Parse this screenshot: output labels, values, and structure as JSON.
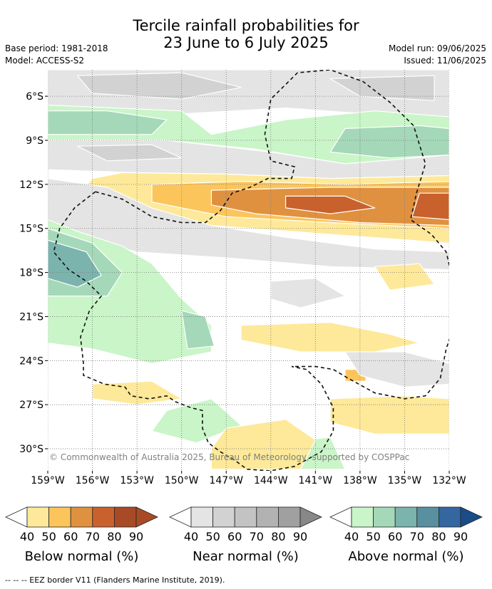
{
  "header": {
    "title_line1": "Tercile rainfall probabilities for",
    "title_line2": "23 June to 6 July 2025",
    "base_period": "Base period: 1981-2018",
    "model": "Model: ACCESS-S2",
    "model_run": "Model run: 09/06/2025",
    "issued": "Issued: 11/06/2025"
  },
  "chart_data": {
    "type": "heatmap",
    "title": "Tercile rainfall probabilities for 23 June to 6 July 2025",
    "x_ticks": [
      "159°W",
      "156°W",
      "153°W",
      "150°W",
      "147°W",
      "144°W",
      "141°W",
      "138°W",
      "135°W",
      "132°W"
    ],
    "x_values": [
      -159,
      -156,
      -153,
      -150,
      -147,
      -144,
      -141,
      -138,
      -135,
      -132
    ],
    "y_ticks": [
      "6°S",
      "9°S",
      "12°S",
      "15°S",
      "18°S",
      "21°S",
      "24°S",
      "27°S",
      "30°S"
    ],
    "y_values": [
      -6,
      -9,
      -12,
      -15,
      -18,
      -21,
      -24,
      -27,
      -30
    ],
    "xlim": [
      -159,
      -132
    ],
    "ylim": [
      -31.5,
      -4.2
    ],
    "grid": true,
    "copyright": "© Commonwealth of Australia 2025, Bureau of Meteorology, supported by COSPPac",
    "regions": [
      {
        "category": "near",
        "level": 40,
        "pts": [
          [
            -159,
            -4.2
          ],
          [
            -132,
            -4.2
          ],
          [
            -132,
            -7.6
          ],
          [
            -143,
            -6.8
          ],
          [
            -150,
            -7.2
          ],
          [
            -159,
            -6.6
          ]
        ]
      },
      {
        "category": "near",
        "level": 50,
        "pts": [
          [
            -157,
            -4.6
          ],
          [
            -150,
            -4.4
          ],
          [
            -146,
            -5.4
          ],
          [
            -150,
            -6.2
          ],
          [
            -156,
            -5.8
          ]
        ]
      },
      {
        "category": "near",
        "level": 50,
        "pts": [
          [
            -140,
            -4.8
          ],
          [
            -133,
            -4.6
          ],
          [
            -133,
            -6.3
          ],
          [
            -138,
            -6.0
          ]
        ]
      },
      {
        "category": "above",
        "level": 40,
        "pts": [
          [
            -159,
            -6.6
          ],
          [
            -150,
            -7.0
          ],
          [
            -148,
            -8.6
          ],
          [
            -143,
            -7.6
          ],
          [
            -137,
            -7.0
          ],
          [
            -132,
            -7.4
          ],
          [
            -132,
            -10.0
          ],
          [
            -139,
            -10.6
          ],
          [
            -145,
            -9.6
          ],
          [
            -151,
            -9.0
          ],
          [
            -159,
            -9.0
          ]
        ]
      },
      {
        "category": "above",
        "level": 50,
        "pts": [
          [
            -159,
            -7.0
          ],
          [
            -155,
            -7.0
          ],
          [
            -151,
            -7.6
          ],
          [
            -152,
            -8.6
          ],
          [
            -159,
            -8.6
          ]
        ]
      },
      {
        "category": "above",
        "level": 50,
        "pts": [
          [
            -139,
            -8.2
          ],
          [
            -134,
            -8.0
          ],
          [
            -132,
            -8.2
          ],
          [
            -132,
            -10.0
          ],
          [
            -136,
            -10.2
          ],
          [
            -140,
            -9.8
          ]
        ]
      },
      {
        "category": "near",
        "level": 40,
        "pts": [
          [
            -159,
            -9.0
          ],
          [
            -151,
            -9.0
          ],
          [
            -144,
            -9.8
          ],
          [
            -139,
            -10.6
          ],
          [
            -132,
            -10.0
          ],
          [
            -132,
            -11.4
          ],
          [
            -140,
            -11.6
          ],
          [
            -147,
            -11.3
          ],
          [
            -153,
            -11.2
          ],
          [
            -159,
            -11.0
          ]
        ]
      },
      {
        "category": "near",
        "level": 50,
        "pts": [
          [
            -157,
            -9.4
          ],
          [
            -152,
            -9.3
          ],
          [
            -150,
            -10.2
          ],
          [
            -155,
            -10.4
          ]
        ]
      },
      {
        "category": "below",
        "level": 40,
        "pts": [
          [
            -154,
            -11.2
          ],
          [
            -147,
            -11.3
          ],
          [
            -140,
            -11.6
          ],
          [
            -132,
            -11.4
          ],
          [
            -132,
            -16.0
          ],
          [
            -140,
            -15.4
          ],
          [
            -148,
            -14.8
          ],
          [
            -154,
            -13.8
          ],
          [
            -157,
            -12.8
          ],
          [
            -156,
            -11.6
          ]
        ]
      },
      {
        "category": "below",
        "level": 50,
        "pts": [
          [
            -152,
            -12.0
          ],
          [
            -146,
            -11.8
          ],
          [
            -139,
            -12.0
          ],
          [
            -132,
            -11.8
          ],
          [
            -132,
            -15.0
          ],
          [
            -140,
            -14.6
          ],
          [
            -147,
            -14.2
          ],
          [
            -152,
            -13.2
          ]
        ]
      },
      {
        "category": "below",
        "level": 60,
        "pts": [
          [
            -148,
            -12.4
          ],
          [
            -140,
            -12.2
          ],
          [
            -132,
            -12.2
          ],
          [
            -132,
            -14.8
          ],
          [
            -138,
            -14.6
          ],
          [
            -145,
            -14.0
          ],
          [
            -148,
            -13.4
          ]
        ]
      },
      {
        "category": "below",
        "level": 70,
        "pts": [
          [
            -143,
            -12.8
          ],
          [
            -139,
            -12.8
          ],
          [
            -137,
            -13.6
          ],
          [
            -140,
            -14.0
          ],
          [
            -143,
            -13.6
          ]
        ]
      },
      {
        "category": "below",
        "level": 70,
        "pts": [
          [
            -134,
            -12.6
          ],
          [
            -132,
            -12.6
          ],
          [
            -132,
            -14.4
          ],
          [
            -134.5,
            -14.2
          ]
        ]
      },
      {
        "category": "near",
        "level": 40,
        "pts": [
          [
            -159,
            -11.6
          ],
          [
            -155,
            -12.2
          ],
          [
            -152,
            -13.6
          ],
          [
            -148,
            -14.8
          ],
          [
            -143,
            -15.6
          ],
          [
            -137,
            -16.4
          ],
          [
            -132,
            -16.6
          ],
          [
            -132,
            -17.8
          ],
          [
            -140,
            -17.6
          ],
          [
            -147,
            -17.0
          ],
          [
            -153,
            -16.6
          ],
          [
            -157,
            -15.6
          ],
          [
            -159,
            -14.6
          ]
        ]
      },
      {
        "category": "above",
        "level": 40,
        "pts": [
          [
            -159,
            -14.4
          ],
          [
            -157,
            -15.2
          ],
          [
            -154,
            -16.2
          ],
          [
            -152,
            -17.4
          ],
          [
            -150,
            -19.8
          ],
          [
            -148,
            -21.6
          ],
          [
            -148,
            -23.4
          ],
          [
            -152,
            -24.2
          ],
          [
            -156,
            -23.2
          ],
          [
            -159,
            -22.8
          ]
        ]
      },
      {
        "category": "above",
        "level": 50,
        "pts": [
          [
            -159,
            -15.0
          ],
          [
            -156,
            -16.0
          ],
          [
            -154,
            -18.0
          ],
          [
            -155,
            -19.6
          ],
          [
            -159,
            -19.6
          ]
        ]
      },
      {
        "category": "above",
        "level": 60,
        "pts": [
          [
            -159,
            -15.8
          ],
          [
            -156.4,
            -16.6
          ],
          [
            -155.4,
            -18.2
          ],
          [
            -157,
            -19.0
          ],
          [
            -159,
            -18.4
          ]
        ]
      },
      {
        "category": "above",
        "level": 50,
        "pts": [
          [
            -150,
            -20.6
          ],
          [
            -148.4,
            -21.0
          ],
          [
            -147.8,
            -23.0
          ],
          [
            -149.6,
            -23.2
          ]
        ]
      },
      {
        "category": "above",
        "level": 40,
        "pts": [
          [
            -151,
            -27.4
          ],
          [
            -148,
            -26.6
          ],
          [
            -146,
            -28.4
          ],
          [
            -149,
            -29.6
          ],
          [
            -152,
            -28.8
          ]
        ]
      },
      {
        "category": "above",
        "level": 40,
        "pts": [
          [
            -143,
            -29.6
          ],
          [
            -140,
            -29.2
          ],
          [
            -139,
            -31.4
          ],
          [
            -143,
            -31.4
          ]
        ]
      },
      {
        "category": "below",
        "level": 40,
        "pts": [
          [
            -146,
            -21.6
          ],
          [
            -140,
            -21.4
          ],
          [
            -136,
            -22.2
          ],
          [
            -134,
            -22.8
          ],
          [
            -137,
            -23.4
          ],
          [
            -142,
            -23.4
          ],
          [
            -146,
            -22.6
          ]
        ]
      },
      {
        "category": "below",
        "level": 40,
        "pts": [
          [
            -140,
            -26.6
          ],
          [
            -135,
            -26.4
          ],
          [
            -132,
            -26.6
          ],
          [
            -132,
            -29.0
          ],
          [
            -137,
            -29.0
          ],
          [
            -140,
            -28.2
          ]
        ]
      },
      {
        "category": "below",
        "level": 40,
        "pts": [
          [
            -147,
            -28.6
          ],
          [
            -143,
            -28.0
          ],
          [
            -141,
            -29.4
          ],
          [
            -142,
            -31.4
          ],
          [
            -148,
            -31.4
          ],
          [
            -148,
            -30.0
          ]
        ]
      },
      {
        "category": "below",
        "level": 40,
        "pts": [
          [
            -156,
            -25.6
          ],
          [
            -152,
            -25.4
          ],
          [
            -150,
            -26.6
          ],
          [
            -153,
            -27.0
          ],
          [
            -156,
            -26.6
          ]
        ]
      },
      {
        "category": "below",
        "level": 40,
        "pts": [
          [
            -137,
            -17.6
          ],
          [
            -134,
            -17.4
          ],
          [
            -133,
            -18.8
          ],
          [
            -136,
            -19.2
          ]
        ]
      },
      {
        "category": "below",
        "level": 50,
        "pts": [
          [
            -139,
            -24.6
          ],
          [
            -137.6,
            -24.6
          ],
          [
            -137.6,
            -25.4
          ],
          [
            -139,
            -25.4
          ]
        ]
      },
      {
        "category": "near",
        "level": 40,
        "pts": [
          [
            -139,
            -23.4
          ],
          [
            -135,
            -23.4
          ],
          [
            -132,
            -24.2
          ],
          [
            -132,
            -25.6
          ],
          [
            -135,
            -25.8
          ],
          [
            -138,
            -25.0
          ]
        ]
      },
      {
        "category": "near",
        "level": 40,
        "pts": [
          [
            -144,
            -18.6
          ],
          [
            -141,
            -18.4
          ],
          [
            -139,
            -19.6
          ],
          [
            -142,
            -20.4
          ],
          [
            -144,
            -19.8
          ]
        ]
      }
    ],
    "eez_paths": [
      [
        [
          -155.8,
          -12.5
        ],
        [
          -154,
          -13.0
        ],
        [
          -152,
          -14.2
        ],
        [
          -150,
          -14.6
        ],
        [
          -148.4,
          -14.6
        ],
        [
          -147.4,
          -13.8
        ],
        [
          -146.6,
          -12.6
        ],
        [
          -145.4,
          -12.2
        ],
        [
          -144.2,
          -11.6
        ],
        [
          -142.6,
          -11.6
        ],
        [
          -142.4,
          -10.8
        ],
        [
          -144,
          -10.4
        ],
        [
          -144.4,
          -8.6
        ],
        [
          -144,
          -6.2
        ],
        [
          -142.2,
          -4.4
        ],
        [
          -140,
          -4.2
        ],
        [
          -137.8,
          -5.0
        ],
        [
          -136,
          -6.4
        ],
        [
          -134.4,
          -8.0
        ],
        [
          -133.6,
          -10.6
        ],
        [
          -134.2,
          -12.6
        ],
        [
          -134.6,
          -14.4
        ],
        [
          -133.2,
          -15.4
        ],
        [
          -132.2,
          -16.6
        ],
        [
          -131.6,
          -19.2
        ],
        [
          -131.6,
          -21.4
        ],
        [
          -132.2,
          -23.2
        ],
        [
          -132.6,
          -25.2
        ],
        [
          -133.6,
          -26.4
        ],
        [
          -135,
          -26.6
        ],
        [
          -137,
          -26.2
        ],
        [
          -138.8,
          -25.2
        ],
        [
          -139.8,
          -24.6
        ],
        [
          -141,
          -24.4
        ],
        [
          -142.6,
          -24.4
        ]
      ],
      [
        [
          -155.8,
          -12.5
        ],
        [
          -157.2,
          -13.6
        ],
        [
          -158.2,
          -15.0
        ],
        [
          -158.6,
          -16.6
        ],
        [
          -157.6,
          -17.8
        ],
        [
          -156.4,
          -18.6
        ],
        [
          -155.4,
          -19.6
        ],
        [
          -156.2,
          -20.6
        ],
        [
          -156.8,
          -22.4
        ],
        [
          -156.6,
          -24.2
        ],
        [
          -156.6,
          -25.0
        ],
        [
          -155.2,
          -25.6
        ],
        [
          -153.8,
          -25.8
        ],
        [
          -153.4,
          -26.4
        ],
        [
          -152.2,
          -26.6
        ],
        [
          -151,
          -26.4
        ],
        [
          -150.4,
          -26.8
        ],
        [
          -149.4,
          -27.2
        ],
        [
          -148.6,
          -27.4
        ],
        [
          -148.6,
          -28.6
        ],
        [
          -148.2,
          -29.6
        ],
        [
          -147.4,
          -30.2
        ],
        [
          -146.4,
          -30.8
        ],
        [
          -145.6,
          -31.4
        ],
        [
          -144,
          -31.5
        ],
        [
          -142.4,
          -31.2
        ],
        [
          -140.6,
          -30.2
        ],
        [
          -139.8,
          -28.8
        ],
        [
          -139.8,
          -27.2
        ],
        [
          -140.6,
          -25.6
        ],
        [
          -141.6,
          -24.6
        ],
        [
          -142.6,
          -24.4
        ]
      ]
    ]
  },
  "colorbars": [
    {
      "key": "below",
      "label": "Below normal (%)",
      "ticks": [
        "40",
        "50",
        "60",
        "70",
        "80",
        "90"
      ],
      "colors": [
        "#ffffff",
        "#fde999",
        "#fbc55c",
        "#e0913f",
        "#c9612d",
        "#a94a27",
        "#a94a27"
      ]
    },
    {
      "key": "near",
      "label": "Near normal (%)",
      "ticks": [
        "40",
        "50",
        "60",
        "70",
        "80",
        "90"
      ],
      "colors": [
        "#ffffff",
        "#e4e4e4",
        "#d2d2d2",
        "#c3c3c3",
        "#b2b2b2",
        "#a0a0a0",
        "#888888"
      ]
    },
    {
      "key": "above",
      "label": "Above normal (%)",
      "ticks": [
        "40",
        "50",
        "60",
        "70",
        "80",
        "90"
      ],
      "colors": [
        "#ffffff",
        "#c9f5c8",
        "#a4d8b9",
        "#7ab4ad",
        "#5890a0",
        "#3466a0",
        "#1a4d87"
      ]
    }
  ],
  "palette": {
    "below": {
      "40": "#fde999",
      "50": "#fbc55c",
      "60": "#e0913f",
      "70": "#c9612d",
      "80": "#a94a27"
    },
    "near": {
      "40": "#e4e4e4",
      "50": "#d2d2d2",
      "60": "#c3c3c3",
      "70": "#b2b2b2",
      "80": "#a0a0a0"
    },
    "above": {
      "40": "#c9f5c8",
      "50": "#a4d8b9",
      "60": "#7ab4ad",
      "70": "#5890a0",
      "80": "#3466a0"
    }
  },
  "footer": {
    "legend_line": "--  --  -- EEZ border V11 (Flanders Marine Institute, 2019)."
  }
}
